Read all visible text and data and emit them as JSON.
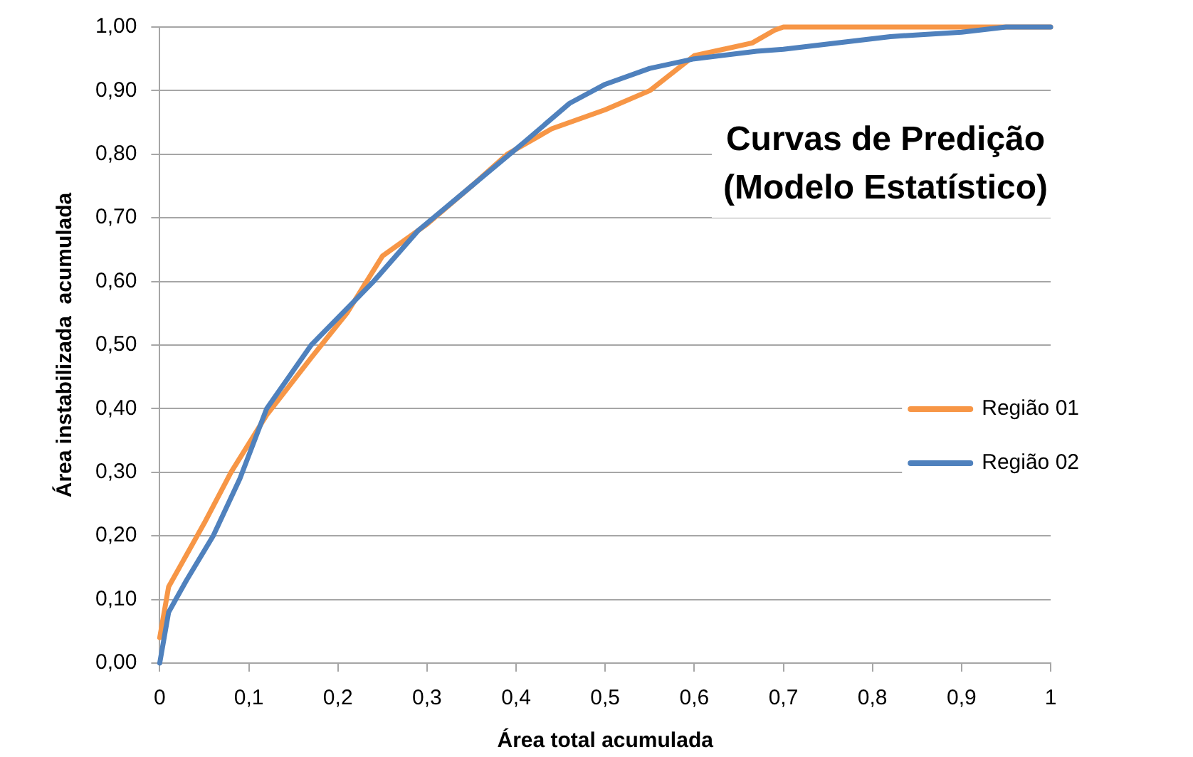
{
  "chart_data": {
    "type": "line",
    "title": "Curvas de Predição\n(Modelo Estatístico)",
    "xlabel": "Área total acumulada",
    "ylabel": "Área instabilizada  acumulada",
    "xlim": [
      0,
      1
    ],
    "ylim": [
      0,
      1
    ],
    "xticks": [
      0,
      {
        "value": 0.1,
        "label": "0,1"
      },
      {
        "value": 0.2,
        "label": "0,2"
      },
      {
        "value": 0.3,
        "label": "0,3"
      },
      {
        "value": 0.4,
        "label": "0,4"
      },
      {
        "value": 0.5,
        "label": "0,5"
      },
      {
        "value": 0.6,
        "label": "0,6"
      },
      {
        "value": 0.7,
        "label": "0,7"
      },
      {
        "value": 0.8,
        "label": "0,8"
      },
      {
        "value": 0.9,
        "label": "0,9"
      },
      1
    ],
    "yticks": [
      {
        "value": 0,
        "label": "0,00"
      },
      {
        "value": 0.1,
        "label": "0,10"
      },
      {
        "value": 0.2,
        "label": "0,20"
      },
      {
        "value": 0.3,
        "label": "0,30"
      },
      {
        "value": 0.4,
        "label": "0,40"
      },
      {
        "value": 0.5,
        "label": "0,50"
      },
      {
        "value": 0.6,
        "label": "0,60"
      },
      {
        "value": 0.7,
        "label": "0,70"
      },
      {
        "value": 0.8,
        "label": "0,80"
      },
      {
        "value": 0.9,
        "label": "0,90"
      },
      {
        "value": 1,
        "label": "1,00"
      }
    ],
    "grid": "y",
    "legend": "right",
    "marker": "none",
    "line_style": "solid",
    "series": [
      {
        "name": "Região 01",
        "color": "#f79646",
        "x": [
          0,
          0.01,
          0.03,
          0.05,
          0.08,
          0.12,
          0.17,
          0.21,
          0.25,
          0.3,
          0.35,
          0.39,
          0.44,
          0.5,
          0.55,
          0.6,
          0.665,
          0.69,
          0.7,
          1
        ],
        "values": [
          0.04,
          0.12,
          0.17,
          0.22,
          0.3,
          0.39,
          0.48,
          0.55,
          0.64,
          0.69,
          0.75,
          0.8,
          0.84,
          0.87,
          0.9,
          0.955,
          0.975,
          0.995,
          1,
          1
        ]
      },
      {
        "name": "Região 02",
        "color": "#4f81bd",
        "x": [
          0,
          0.01,
          0.03,
          0.06,
          0.09,
          0.12,
          0.17,
          0.24,
          0.29,
          0.35,
          0.41,
          0.46,
          0.5,
          0.55,
          0.6,
          0.67,
          0.7,
          0.82,
          0.9,
          0.95,
          1
        ],
        "values": [
          0,
          0.08,
          0.13,
          0.2,
          0.29,
          0.4,
          0.5,
          0.6,
          0.68,
          0.75,
          0.82,
          0.88,
          0.91,
          0.935,
          0.95,
          0.962,
          0.965,
          0.985,
          0.992,
          1,
          1
        ]
      }
    ]
  }
}
